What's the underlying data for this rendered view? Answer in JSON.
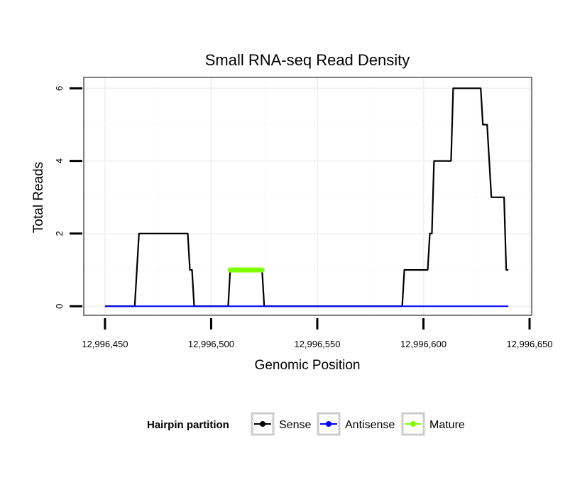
{
  "chart_data": {
    "type": "line",
    "title": "Small RNA-seq Read Density",
    "xlabel": "Genomic Position",
    "ylabel": "Total Reads",
    "xlim": [
      12996440,
      12996651
    ],
    "ylim": [
      -0.25,
      6.3
    ],
    "x_ticks": [
      12996450,
      12996500,
      12996550,
      12996600,
      12996650
    ],
    "x_tick_labels": [
      "12,996,450",
      "12,996,500",
      "12,996,550",
      "12,996,600",
      "12,996,650"
    ],
    "y_ticks": [
      0,
      2,
      4,
      6
    ],
    "y_tick_labels": [
      "0",
      "2",
      "4",
      "6"
    ],
    "grid": true,
    "legend": {
      "title": "Hairpin partition",
      "position": "bottom",
      "entries": [
        {
          "label": "Sense",
          "color": "#000000"
        },
        {
          "label": "Antisense",
          "color": "#0000ff"
        },
        {
          "label": "Mature",
          "color": "#7fff00"
        }
      ]
    },
    "series": [
      {
        "name": "Sense",
        "color": "#000000",
        "x": [
          12996450,
          12996464,
          12996466,
          12996489,
          12996490,
          12996491,
          12996492,
          12996508,
          12996509,
          12996524,
          12996525,
          12996590,
          12996591,
          12996602,
          12996603,
          12996604,
          12996605,
          12996613,
          12996614,
          12996627,
          12996628,
          12996630,
          12996632,
          12996638,
          12996639,
          12996640
        ],
        "y": [
          0,
          0,
          2,
          2,
          1,
          1,
          0,
          0,
          1,
          1,
          0,
          0,
          1,
          1,
          2,
          2,
          4,
          4,
          6,
          6,
          5,
          5,
          3,
          3,
          1,
          1
        ]
      },
      {
        "name": "Antisense",
        "color": "#0000ff",
        "x": [
          12996450,
          12996640
        ],
        "y": [
          0,
          0
        ]
      },
      {
        "name": "Mature",
        "color": "#7fff00",
        "x": [
          12996509,
          12996524
        ],
        "y": [
          1,
          1
        ]
      }
    ]
  }
}
